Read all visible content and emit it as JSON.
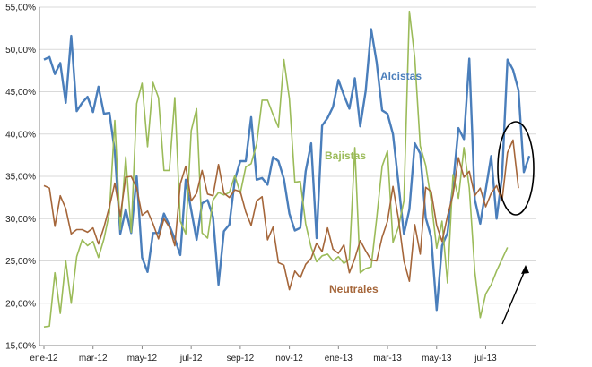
{
  "chart_data": {
    "type": "line",
    "title": "",
    "xlabel": "",
    "ylabel": "",
    "ylim": [
      0.15,
      0.55
    ],
    "y_ticks": [
      "15,00%",
      "20,00%",
      "25,00%",
      "30,00%",
      "35,00%",
      "40,00%",
      "45,00%",
      "50,00%",
      "55,00%"
    ],
    "x_ticks": [
      "ene-12",
      "mar-12",
      "may-12",
      "jul-12",
      "sep-12",
      "nov-12",
      "ene-13",
      "mar-13",
      "may-13",
      "jul-13"
    ],
    "x_tick_positions": [
      0,
      9,
      18,
      27,
      36,
      45,
      54,
      63,
      72,
      81
    ],
    "grid": "horizontal",
    "legend": "none",
    "series": [
      {
        "name": "Alcistas",
        "color": "#4a7ebb",
        "values": [
          0.488,
          0.491,
          0.471,
          0.484,
          0.437,
          0.516,
          0.427,
          0.437,
          0.444,
          0.426,
          0.456,
          0.424,
          0.425,
          0.379,
          0.282,
          0.311,
          0.283,
          0.35,
          0.254,
          0.237,
          0.283,
          0.283,
          0.306,
          0.292,
          0.276,
          0.257,
          0.346,
          0.31,
          0.275,
          0.318,
          0.322,
          0.302,
          0.222,
          0.285,
          0.293,
          0.346,
          0.368,
          0.368,
          0.42,
          0.346,
          0.348,
          0.34,
          0.373,
          0.368,
          0.347,
          0.306,
          0.286,
          0.289,
          0.356,
          0.389,
          0.277,
          0.41,
          0.419,
          0.432,
          0.464,
          0.446,
          0.43,
          0.466,
          0.409,
          0.451,
          0.524,
          0.485,
          0.428,
          0.424,
          0.4,
          0.342,
          0.282,
          0.311,
          0.389,
          0.377,
          0.301,
          0.278,
          0.192,
          0.268,
          0.283,
          0.339,
          0.407,
          0.394,
          0.489,
          0.323,
          0.294,
          0.334,
          0.374,
          0.3,
          0.35,
          0.488,
          0.476,
          0.452,
          0.355,
          0.374
        ]
      },
      {
        "name": "Bajistas",
        "color": "#9bbb59",
        "values": [
          0.172,
          0.173,
          0.236,
          0.188,
          0.25,
          0.2,
          0.255,
          0.275,
          0.268,
          0.273,
          0.254,
          0.276,
          0.307,
          0.416,
          0.287,
          0.373,
          0.284,
          0.436,
          0.46,
          0.385,
          0.461,
          0.443,
          0.357,
          0.357,
          0.443,
          0.297,
          0.282,
          0.404,
          0.43,
          0.283,
          0.277,
          0.322,
          0.331,
          0.328,
          0.331,
          0.351,
          0.33,
          0.361,
          0.365,
          0.388,
          0.44,
          0.44,
          0.423,
          0.408,
          0.488,
          0.442,
          0.343,
          0.344,
          0.294,
          0.266,
          0.249,
          0.256,
          0.258,
          0.25,
          0.255,
          0.247,
          0.252,
          0.384,
          0.236,
          0.241,
          0.243,
          0.3,
          0.362,
          0.38,
          0.272,
          0.29,
          0.321,
          0.545,
          0.49,
          0.386,
          0.363,
          0.321,
          0.265,
          0.297,
          0.224,
          0.352,
          0.324,
          0.384,
          0.336,
          0.238,
          0.183,
          0.211,
          0.222,
          0.238,
          0.252,
          0.266
        ]
      },
      {
        "name": "Neutrales",
        "color": "#a5663a",
        "values": [
          0.339,
          0.336,
          0.291,
          0.327,
          0.312,
          0.282,
          0.287,
          0.287,
          0.284,
          0.289,
          0.27,
          0.29,
          0.314,
          0.342,
          0.303,
          0.349,
          0.35,
          0.336,
          0.304,
          0.309,
          0.294,
          0.276,
          0.3,
          0.29,
          0.268,
          0.341,
          0.362,
          0.321,
          0.33,
          0.357,
          0.329,
          0.327,
          0.364,
          0.33,
          0.325,
          0.334,
          0.332,
          0.308,
          0.292,
          0.321,
          0.326,
          0.275,
          0.29,
          0.248,
          0.245,
          0.216,
          0.238,
          0.23,
          0.246,
          0.253,
          0.271,
          0.261,
          0.289,
          0.264,
          0.259,
          0.269,
          0.236,
          0.253,
          0.274,
          0.262,
          0.251,
          0.25,
          0.278,
          0.297,
          0.338,
          0.3,
          0.25,
          0.226,
          0.293,
          0.258,
          0.337,
          0.332,
          0.292,
          0.273,
          0.303,
          0.328,
          0.372,
          0.349,
          0.356,
          0.327,
          0.336,
          0.314,
          0.33,
          0.339,
          0.321,
          0.378,
          0.393,
          0.336
        ]
      }
    ],
    "annotations": [
      {
        "text": "Alcistas",
        "color": "#4a7ebb"
      },
      {
        "text": "Bajistas",
        "color": "#9bbb59"
      },
      {
        "text": "Neutrales",
        "color": "#a5663a"
      }
    ]
  }
}
